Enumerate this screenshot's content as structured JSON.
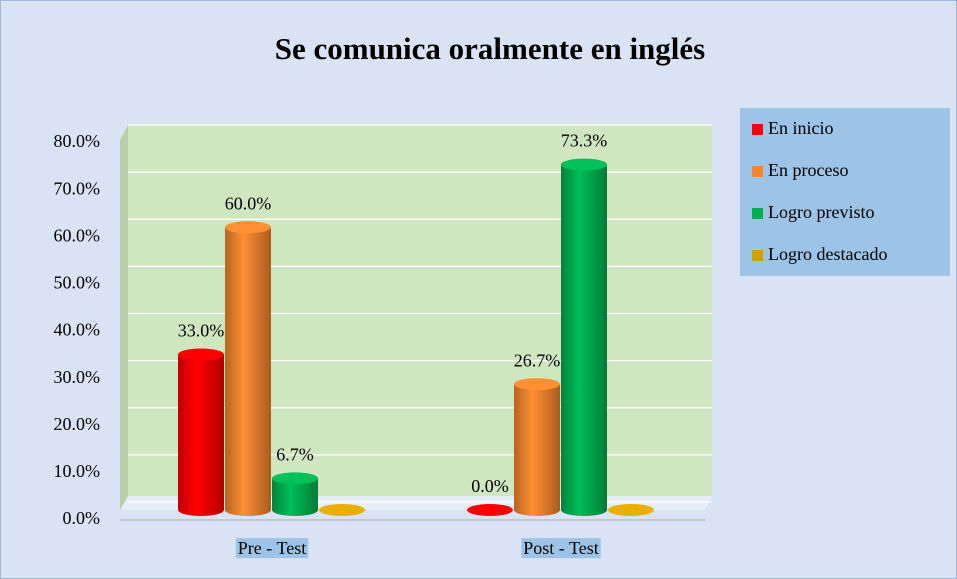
{
  "chart_data": {
    "type": "bar",
    "title": "Se comunica oralmente en inglés",
    "categories": [
      "Pre - Test",
      "Post - Test"
    ],
    "series": [
      {
        "name": "En inicio",
        "color": "#ff0000",
        "values": [
          33.0,
          0.0
        ],
        "value_labels": [
          "33.0%",
          "0.0%"
        ]
      },
      {
        "name": "En proceso",
        "color": "#f4842f",
        "values": [
          60.0,
          26.7
        ],
        "value_labels": [
          "60.0%",
          "26.7%"
        ]
      },
      {
        "name": "Logro previsto",
        "color": "#00b050",
        "values": [
          6.7,
          73.3
        ],
        "value_labels": [
          "6.7%",
          "73.3%"
        ]
      },
      {
        "name": "Logro destacado",
        "color": "#d4a000",
        "values": [
          0.0,
          0.0
        ]
      }
    ],
    "ylim": [
      0,
      80
    ],
    "yticks": [
      {
        "value": 0,
        "label": "0.0%"
      },
      {
        "value": 10,
        "label": "10.0%"
      },
      {
        "value": 20,
        "label": "20.0%"
      },
      {
        "value": 30,
        "label": "30.0%"
      },
      {
        "value": 40,
        "label": "40.0%"
      },
      {
        "value": 50,
        "label": "50.0%"
      },
      {
        "value": 60,
        "label": "60.0%"
      },
      {
        "value": 70,
        "label": "70.0%"
      },
      {
        "value": 80,
        "label": "80.0%"
      }
    ],
    "grid": true,
    "legend": "right"
  }
}
